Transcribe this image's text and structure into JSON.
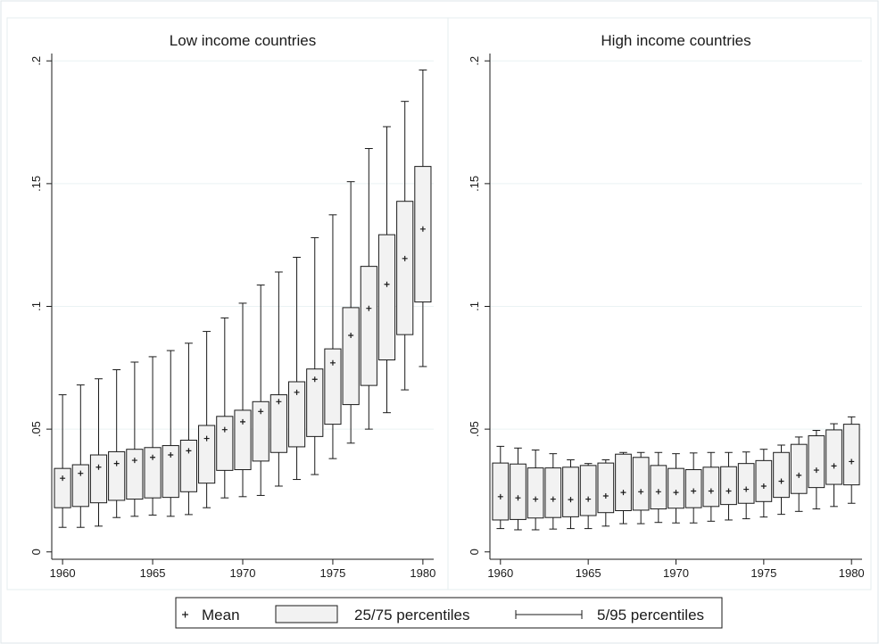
{
  "chart_data": [
    {
      "type": "box",
      "title": "Low income countries",
      "xlabel": "",
      "ylabel": "",
      "xlim": [
        1959.4,
        1980.6
      ],
      "ylim": [
        -0.003,
        0.203
      ],
      "xticks": [
        1960,
        1965,
        1970,
        1975,
        1980
      ],
      "xtick_labels": [
        "1960",
        "1965",
        "1970",
        "1975",
        "1980"
      ],
      "yticks": [
        0,
        0.05,
        0.1,
        0.15,
        0.2
      ],
      "ytick_labels": [
        "0",
        ".05",
        ".1",
        ".15",
        ".2"
      ],
      "grid": true,
      "boxes": [
        {
          "x": 1960,
          "p5": 0.01,
          "p25": 0.018,
          "mean": 0.03,
          "p75": 0.034,
          "p95": 0.064
        },
        {
          "x": 1961,
          "p5": 0.01,
          "p25": 0.0185,
          "mean": 0.032,
          "p75": 0.0355,
          "p95": 0.068
        },
        {
          "x": 1962,
          "p5": 0.0105,
          "p25": 0.02,
          "mean": 0.0345,
          "p75": 0.0395,
          "p95": 0.0705
        },
        {
          "x": 1963,
          "p5": 0.014,
          "p25": 0.021,
          "mean": 0.036,
          "p75": 0.0408,
          "p95": 0.0742
        },
        {
          "x": 1964,
          "p5": 0.0145,
          "p25": 0.0215,
          "mean": 0.0373,
          "p75": 0.0418,
          "p95": 0.0773
        },
        {
          "x": 1965,
          "p5": 0.015,
          "p25": 0.022,
          "mean": 0.0385,
          "p75": 0.0425,
          "p95": 0.0795
        },
        {
          "x": 1966,
          "p5": 0.0145,
          "p25": 0.0222,
          "mean": 0.0395,
          "p75": 0.0433,
          "p95": 0.082
        },
        {
          "x": 1967,
          "p5": 0.0152,
          "p25": 0.0245,
          "mean": 0.0412,
          "p75": 0.0455,
          "p95": 0.085
        },
        {
          "x": 1968,
          "p5": 0.018,
          "p25": 0.028,
          "mean": 0.0462,
          "p75": 0.0515,
          "p95": 0.0898
        },
        {
          "x": 1969,
          "p5": 0.022,
          "p25": 0.0332,
          "mean": 0.0498,
          "p75": 0.0552,
          "p95": 0.0953
        },
        {
          "x": 1970,
          "p5": 0.0225,
          "p25": 0.0335,
          "mean": 0.053,
          "p75": 0.0577,
          "p95": 0.1013
        },
        {
          "x": 1971,
          "p5": 0.023,
          "p25": 0.037,
          "mean": 0.0572,
          "p75": 0.0612,
          "p95": 0.1087
        },
        {
          "x": 1972,
          "p5": 0.0268,
          "p25": 0.0405,
          "mean": 0.0612,
          "p75": 0.064,
          "p95": 0.114
        },
        {
          "x": 1973,
          "p5": 0.0295,
          "p25": 0.0428,
          "mean": 0.065,
          "p75": 0.0693,
          "p95": 0.12
        },
        {
          "x": 1974,
          "p5": 0.0315,
          "p25": 0.047,
          "mean": 0.0703,
          "p75": 0.0745,
          "p95": 0.128
        },
        {
          "x": 1975,
          "p5": 0.038,
          "p25": 0.052,
          "mean": 0.077,
          "p75": 0.0827,
          "p95": 0.1373
        },
        {
          "x": 1976,
          "p5": 0.0443,
          "p25": 0.06,
          "mean": 0.0882,
          "p75": 0.0995,
          "p95": 0.1508
        },
        {
          "x": 1977,
          "p5": 0.05,
          "p25": 0.0678,
          "mean": 0.0992,
          "p75": 0.1163,
          "p95": 0.1643
        },
        {
          "x": 1978,
          "p5": 0.0567,
          "p25": 0.0782,
          "mean": 0.109,
          "p75": 0.1292,
          "p95": 0.1732
        },
        {
          "x": 1979,
          "p5": 0.066,
          "p25": 0.0885,
          "mean": 0.1195,
          "p75": 0.1428,
          "p95": 0.1835
        },
        {
          "x": 1980,
          "p5": 0.0755,
          "p25": 0.1018,
          "mean": 0.1315,
          "p75": 0.157,
          "p95": 0.1963
        }
      ]
    },
    {
      "type": "box",
      "title": "High income countries",
      "xlabel": "",
      "ylabel": "",
      "xlim": [
        1959.4,
        1980.6
      ],
      "ylim": [
        -0.003,
        0.203
      ],
      "xticks": [
        1960,
        1965,
        1970,
        1975,
        1980
      ],
      "xtick_labels": [
        "1960",
        "1965",
        "1970",
        "1975",
        "1980"
      ],
      "yticks": [
        0,
        0.05,
        0.1,
        0.15,
        0.2
      ],
      "ytick_labels": [
        "0",
        ".05",
        ".1",
        ".15",
        ".2"
      ],
      "grid": true,
      "boxes": [
        {
          "x": 1960,
          "p5": 0.0095,
          "p25": 0.013,
          "mean": 0.0225,
          "p75": 0.0362,
          "p95": 0.043
        },
        {
          "x": 1961,
          "p5": 0.009,
          "p25": 0.0132,
          "mean": 0.022,
          "p75": 0.0358,
          "p95": 0.0423
        },
        {
          "x": 1962,
          "p5": 0.009,
          "p25": 0.0138,
          "mean": 0.0215,
          "p75": 0.0342,
          "p95": 0.0415
        },
        {
          "x": 1963,
          "p5": 0.0093,
          "p25": 0.014,
          "mean": 0.0215,
          "p75": 0.0342,
          "p95": 0.04
        },
        {
          "x": 1964,
          "p5": 0.0095,
          "p25": 0.0143,
          "mean": 0.0213,
          "p75": 0.0345,
          "p95": 0.0375
        },
        {
          "x": 1965,
          "p5": 0.0095,
          "p25": 0.0148,
          "mean": 0.0215,
          "p75": 0.0352,
          "p95": 0.036
        },
        {
          "x": 1966,
          "p5": 0.0105,
          "p25": 0.016,
          "mean": 0.0228,
          "p75": 0.0362,
          "p95": 0.0375
        },
        {
          "x": 1967,
          "p5": 0.0115,
          "p25": 0.0168,
          "mean": 0.0242,
          "p75": 0.0398,
          "p95": 0.0405
        },
        {
          "x": 1968,
          "p5": 0.0115,
          "p25": 0.017,
          "mean": 0.0245,
          "p75": 0.0385,
          "p95": 0.0405
        },
        {
          "x": 1969,
          "p5": 0.012,
          "p25": 0.0175,
          "mean": 0.0245,
          "p75": 0.0352,
          "p95": 0.0405
        },
        {
          "x": 1970,
          "p5": 0.0118,
          "p25": 0.0178,
          "mean": 0.0242,
          "p75": 0.034,
          "p95": 0.04
        },
        {
          "x": 1971,
          "p5": 0.0118,
          "p25": 0.018,
          "mean": 0.0248,
          "p75": 0.0335,
          "p95": 0.0403
        },
        {
          "x": 1972,
          "p5": 0.0125,
          "p25": 0.0185,
          "mean": 0.0248,
          "p75": 0.0345,
          "p95": 0.0405
        },
        {
          "x": 1973,
          "p5": 0.013,
          "p25": 0.0193,
          "mean": 0.0248,
          "p75": 0.0347,
          "p95": 0.0405
        },
        {
          "x": 1974,
          "p5": 0.0135,
          "p25": 0.0198,
          "mean": 0.0255,
          "p75": 0.036,
          "p95": 0.0407
        },
        {
          "x": 1975,
          "p5": 0.0142,
          "p25": 0.0205,
          "mean": 0.0268,
          "p75": 0.0372,
          "p95": 0.0418
        },
        {
          "x": 1976,
          "p5": 0.0153,
          "p25": 0.0222,
          "mean": 0.0288,
          "p75": 0.0405,
          "p95": 0.0435
        },
        {
          "x": 1977,
          "p5": 0.0165,
          "p25": 0.0238,
          "mean": 0.0312,
          "p75": 0.0438,
          "p95": 0.0468
        },
        {
          "x": 1978,
          "p5": 0.0175,
          "p25": 0.0262,
          "mean": 0.0333,
          "p75": 0.0473,
          "p95": 0.0495
        },
        {
          "x": 1979,
          "p5": 0.0185,
          "p25": 0.0275,
          "mean": 0.035,
          "p75": 0.0497,
          "p95": 0.0522
        },
        {
          "x": 1980,
          "p5": 0.0198,
          "p25": 0.0273,
          "mean": 0.0368,
          "p75": 0.052,
          "p95": 0.055
        }
      ]
    }
  ],
  "legend": {
    "placement": "bottom-center",
    "mean_label": "Mean",
    "box_label": "25/75 percentiles",
    "whisker_label": "5/95 percentiles"
  },
  "colors": {
    "box_fill": "#f2f2f2",
    "line": "#1a1a1a",
    "grid": "#eaf2f3",
    "panel_border": "#e6eeef",
    "outer_border": "#dde6e8",
    "outer_background": "#ffffff"
  }
}
